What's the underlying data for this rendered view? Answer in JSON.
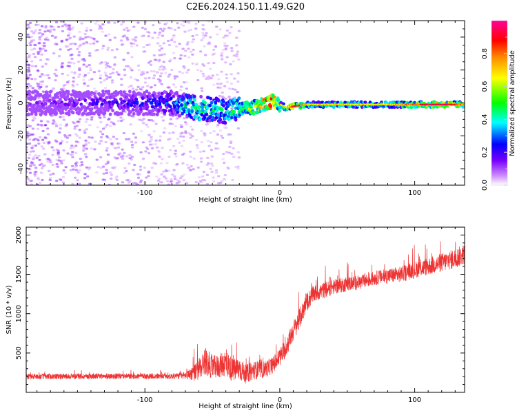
{
  "title": "C2E6.2024.150.11.49.G20",
  "chart_data": [
    {
      "type": "heatmap",
      "title": "C2E6.2024.150.11.49.G20",
      "xlabel": "Height of straight line (km)",
      "ylabel": "Frequency (Hz)",
      "xlim": [
        -188,
        137
      ],
      "ylim": [
        -50,
        50
      ],
      "xticks": [
        -100,
        0,
        100
      ],
      "yticks": [
        -40,
        -20,
        0,
        20,
        40
      ],
      "colorbar": {
        "label": "Normalized spectral amplitude",
        "range": [
          0.0,
          1.0
        ],
        "ticks": [
          0.0,
          0.2,
          0.4,
          0.6,
          0.8
        ],
        "colormap": [
          "#ffffff",
          "#cc88ff",
          "#7700ff",
          "#0000ff",
          "#00ffff",
          "#00ff00",
          "#ffff00",
          "#ff8800",
          "#ff0000",
          "#ff0099"
        ]
      },
      "ridge": {
        "x": [
          -188,
          -150,
          -120,
          -100,
          -80,
          -70,
          -60,
          -50,
          -40,
          -30,
          -20,
          -10,
          -5,
          0,
          5,
          10,
          20,
          40,
          60,
          80,
          100,
          120,
          137
        ],
        "freq": [
          0,
          0,
          0,
          0,
          0,
          -2,
          -3,
          -4,
          -5,
          -4,
          -3,
          0,
          1,
          -1,
          -3,
          -2,
          -1,
          -1,
          -1,
          -1,
          -1,
          -1,
          -1
        ],
        "amp": [
          0.15,
          0.18,
          0.22,
          0.25,
          0.3,
          0.45,
          0.5,
          0.45,
          0.45,
          0.5,
          0.65,
          0.85,
          0.9,
          0.55,
          0.5,
          0.75,
          0.5,
          0.5,
          0.5,
          0.5,
          0.65,
          0.8,
          0.55
        ]
      },
      "noise_scatter_region": {
        "x_from": -188,
        "x_to": -30,
        "freq_span": [
          -50,
          50
        ],
        "max_amp": 0.12
      }
    },
    {
      "type": "line",
      "xlabel": "Height of straight line (km)",
      "ylabel": "SNR (10 * v/v)",
      "xlim": [
        -188,
        137
      ],
      "ylim": [
        0,
        2100
      ],
      "xticks": [
        -100,
        0,
        100
      ],
      "yticks": [
        500,
        1000,
        1500,
        2000
      ],
      "color": "#ee3333",
      "series": [
        {
          "name": "SNR",
          "x": [
            -188,
            -150,
            -120,
            -100,
            -80,
            -70,
            -62,
            -55,
            -50,
            -45,
            -40,
            -35,
            -30,
            -25,
            -20,
            -15,
            -10,
            -5,
            0,
            5,
            10,
            15,
            20,
            25,
            30,
            40,
            50,
            60,
            70,
            80,
            90,
            100,
            110,
            120,
            130,
            137
          ],
          "base": [
            200,
            205,
            205,
            205,
            205,
            215,
            260,
            400,
            320,
            330,
            380,
            280,
            300,
            230,
            280,
            280,
            300,
            350,
            450,
            580,
            780,
            950,
            1150,
            1250,
            1280,
            1340,
            1380,
            1400,
            1450,
            1480,
            1500,
            1560,
            1600,
            1650,
            1700,
            1760
          ],
          "amp": [
            60,
            60,
            60,
            60,
            60,
            80,
            200,
            300,
            250,
            250,
            300,
            250,
            250,
            200,
            200,
            180,
            180,
            180,
            200,
            200,
            220,
            220,
            200,
            180,
            180,
            160,
            160,
            150,
            150,
            160,
            170,
            180,
            190,
            200,
            210,
            220
          ]
        }
      ]
    }
  ]
}
